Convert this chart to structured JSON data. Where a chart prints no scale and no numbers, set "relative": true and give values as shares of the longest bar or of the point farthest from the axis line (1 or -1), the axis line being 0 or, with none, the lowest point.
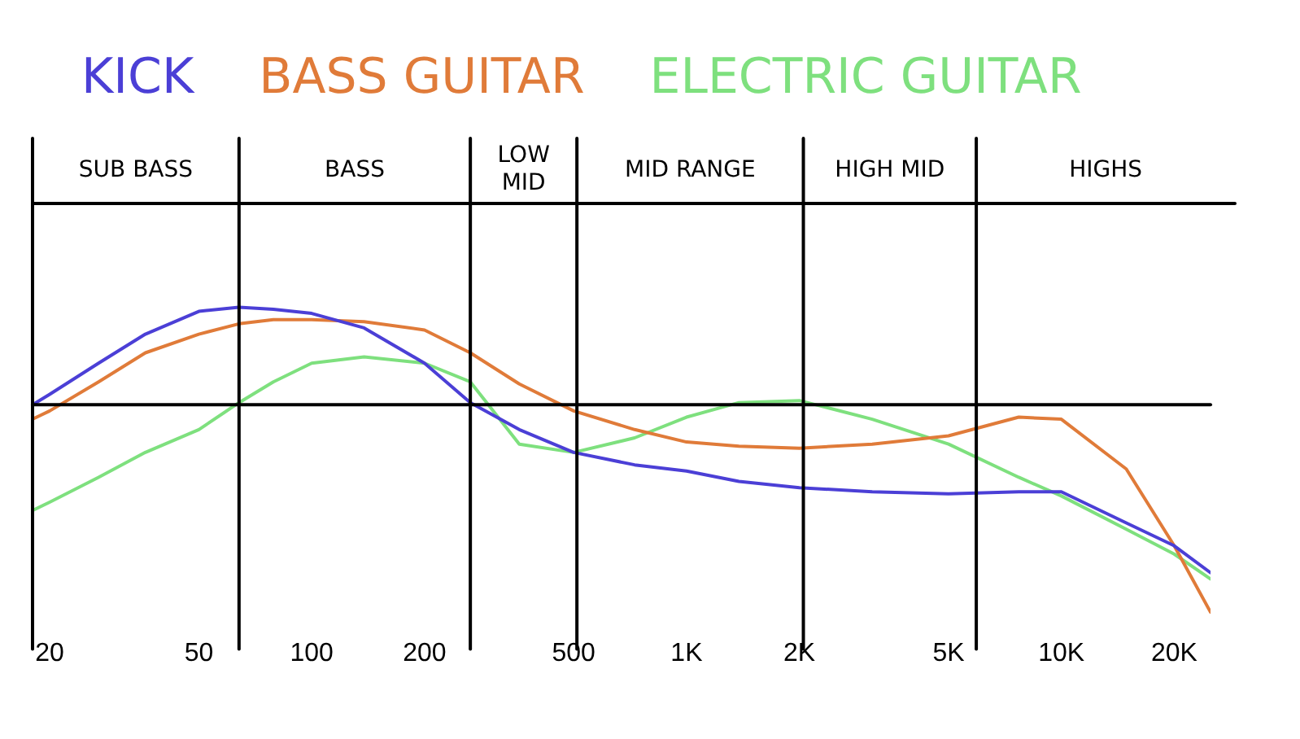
{
  "chart_data": {
    "type": "line",
    "relative": true,
    "log": "x",
    "grid": false,
    "legend": "top",
    "marker": "none",
    "xlim": [
      18,
      25000
    ],
    "xticks": [
      20,
      50,
      100,
      200,
      500,
      {
        "value": 1000,
        "label": "1K"
      },
      {
        "value": 2000,
        "label": "2K"
      },
      {
        "value": 5000,
        "label": "5K"
      },
      {
        "value": 10000,
        "label": "10K"
      },
      {
        "value": 20000,
        "label": "20K"
      }
    ],
    "x": [
      18,
      20,
      27,
      36,
      50,
      64,
      79,
      100,
      138,
      200,
      265,
      358,
      500,
      727,
      1000,
      1380,
      2000,
      3130,
      5000,
      7700,
      10000,
      14900,
      20000,
      25000
    ],
    "series": [
      {
        "name": "KICK",
        "color": "#4b3fd6",
        "values": [
          0,
          0.05,
          0.2,
          0.34,
          0.45,
          0.47,
          0.46,
          0.44,
          0.37,
          0.2,
          0.01,
          -0.12,
          -0.23,
          -0.29,
          -0.32,
          -0.37,
          -0.4,
          -0.42,
          -0.43,
          -0.42,
          -0.42,
          -0.57,
          -0.68,
          -0.81
        ]
      },
      {
        "name": "BASS GUITAR",
        "color": "#e07b39",
        "values": [
          -0.07,
          -0.03,
          0.11,
          0.25,
          0.34,
          0.39,
          0.41,
          0.41,
          0.4,
          0.36,
          0.25,
          0.1,
          -0.03,
          -0.12,
          -0.18,
          -0.2,
          -0.21,
          -0.19,
          -0.15,
          -0.06,
          -0.07,
          -0.31,
          -0.68,
          -1
        ]
      },
      {
        "name": "ELECTRIC GUITAR",
        "color": "#7ee07e",
        "values": [
          -0.51,
          -0.47,
          -0.35,
          -0.23,
          -0.12,
          0.01,
          0.11,
          0.2,
          0.23,
          0.2,
          0.11,
          -0.19,
          -0.23,
          -0.16,
          -0.06,
          0.01,
          0.02,
          -0.07,
          -0.19,
          -0.35,
          -0.44,
          -0.6,
          -0.72,
          -0.84
        ]
      }
    ],
    "ref_lines": [
      {
        "axis": "x",
        "value": 64
      },
      {
        "axis": "x",
        "value": 265
      },
      {
        "axis": "x",
        "value": 510
      },
      {
        "axis": "x",
        "value": 2050
      },
      {
        "axis": "x",
        "value": 5930
      }
    ],
    "annotations": [
      "SUB BASS",
      "BASS",
      "LOW MID",
      "MID RANGE",
      "HIGH MID",
      "HIGHS"
    ]
  }
}
